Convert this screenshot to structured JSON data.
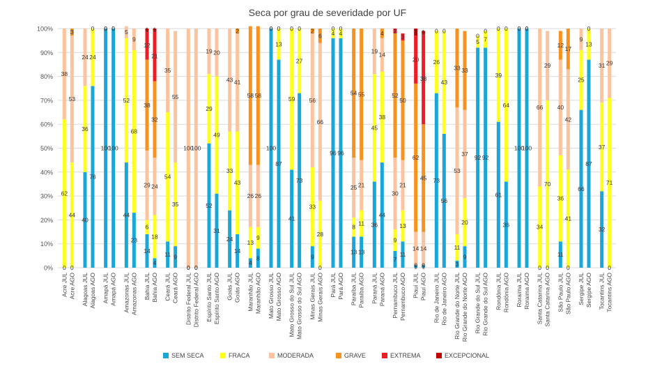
{
  "chart_data": {
    "type": "bar",
    "stacked": true,
    "percent": true,
    "title": "Seca por grau de severidade por UF",
    "xlabel": "",
    "ylabel": "",
    "ylim": [
      0,
      100
    ],
    "yticks": [
      "0%",
      "10%",
      "20%",
      "30%",
      "40%",
      "50%",
      "60%",
      "70%",
      "80%",
      "90%",
      "100%"
    ],
    "grid": true,
    "legend_position": "bottom",
    "categories": [
      "Acre JUL",
      "Acre AGO",
      "Alagoas JUL",
      "Alagoas AGO",
      "Amapá JUL",
      "Amapá AGO",
      "Amazonas JUL",
      "Amazonas AGO",
      "Bahia JUL",
      "Bahia AGO",
      "Ceará JUL",
      "Ceará AGO",
      "Distrito Federal JUL",
      "Distrito Federal AGO",
      "Espírito Santo JUL",
      "Espírito Santo AGO",
      "Goiás JUL",
      "Goiás AGO",
      "Maranhão JUL",
      "Maranhão AGO",
      "Mato Grosso JUL",
      "Mato Grosso AGO",
      "Mato Grosso do Sul JUL",
      "Mato Grosso do Sul AGO",
      "Minas Gerais JUL",
      "Minas Gerais AGO",
      "Pará JUL",
      "Pará AGO",
      "Paraíba JUL",
      "Paraíba AGO",
      "Paraná JUL",
      "Paraná AGO",
      "Pernambuco JUL",
      "Pernambuco AGO",
      "Piauí JUL",
      "Piauí AGO",
      "Rio de Janeiro JUL",
      "Rio de Janeiro AGO",
      "Rio Grande do Norte JUL",
      "Rio Grande do Norte AGO",
      "Rio Grande do Sul JUL",
      "Rio Grande do Sul AGO",
      "Rondônia JUL",
      "Rondônia AGO",
      "Roraima JUL",
      "Roraima AGO",
      "Santa Catarina JUL",
      "Santa Catarina AGO",
      "São Paulo JUL",
      "São Paulo AGO",
      "Sergipe JUL",
      "Sergipe AGO",
      "Tocantins JUL",
      "Tocantins AGO"
    ],
    "series": [
      {
        "name": "SEM SECA",
        "color": "#1aa7d8",
        "values": [
          0,
          0,
          40,
          76,
          100,
          100,
          44,
          23,
          14,
          4,
          11,
          9,
          0,
          0,
          52,
          31,
          24,
          14,
          4,
          8,
          100,
          87,
          41,
          73,
          9,
          0,
          96,
          96,
          13,
          13,
          36,
          44,
          7,
          11,
          1,
          1,
          73,
          56,
          3,
          9,
          92,
          92,
          61,
          36,
          100,
          100,
          0,
          0,
          11,
          0,
          66,
          87,
          32,
          0
        ]
      },
      {
        "name": "FRACA",
        "color": "#ffff1f",
        "values": [
          62,
          44,
          36,
          24,
          0,
          0,
          52,
          68,
          6,
          18,
          54,
          35,
          0,
          0,
          29,
          49,
          33,
          43,
          13,
          9,
          0,
          13,
          59,
          27,
          33,
          28,
          4,
          4,
          8,
          11,
          45,
          38,
          9,
          13,
          0,
          0,
          26,
          43,
          11,
          20,
          5,
          7,
          39,
          64,
          0,
          0,
          34,
          70,
          36,
          41,
          25,
          13,
          37,
          71
        ]
      },
      {
        "name": "MODERADA",
        "color": "#fbc49f",
        "values": [
          38,
          53,
          24,
          0,
          0,
          0,
          5,
          9,
          29,
          24,
          35,
          55,
          100,
          100,
          19,
          20,
          43,
          41,
          26,
          26,
          0,
          0,
          0,
          0,
          56,
          66,
          0,
          0,
          25,
          21,
          19,
          14,
          30,
          21,
          14,
          14,
          0,
          0,
          53,
          37,
          0,
          0,
          0,
          0,
          0,
          0,
          66,
          29,
          40,
          42,
          9,
          0,
          31,
          29
        ]
      },
      {
        "name": "GRAVE",
        "color": "#f6921e",
        "values": [
          0,
          3,
          0,
          0,
          0,
          0,
          0,
          0,
          38,
          32,
          0,
          0,
          0,
          0,
          0,
          0,
          0,
          2,
          58,
          58,
          0,
          0,
          0,
          0,
          2,
          6,
          0,
          0,
          54,
          55,
          0,
          4,
          52,
          50,
          62,
          45,
          0,
          0,
          33,
          33,
          0,
          0,
          0,
          0,
          0,
          0,
          0,
          0,
          12,
          17,
          0,
          0,
          0,
          0
        ]
      },
      {
        "name": "EXTREMA",
        "color": "#ee1c24",
        "values": [
          0,
          0,
          0,
          0,
          0,
          0,
          0,
          0,
          12,
          21,
          0,
          0,
          0,
          0,
          0,
          0,
          0,
          0,
          0,
          0,
          0,
          0,
          0,
          0,
          0,
          0,
          0,
          0,
          0,
          0,
          0,
          0,
          2,
          3,
          20,
          38,
          0,
          0,
          0,
          0,
          0,
          0,
          0,
          0,
          0,
          0,
          0,
          0,
          0,
          0,
          0,
          0,
          0,
          0
        ]
      },
      {
        "name": "EXCEPCIONAL",
        "color": "#c00000",
        "values": [
          0,
          0,
          0,
          0,
          0,
          0,
          0,
          0,
          1,
          1,
          0,
          0,
          0,
          0,
          0,
          0,
          0,
          0,
          0,
          0,
          0,
          0,
          0,
          0,
          0,
          0,
          0,
          0,
          0,
          0,
          0,
          0,
          0,
          0,
          3,
          1,
          0,
          0,
          0,
          0,
          0,
          0,
          0,
          0,
          0,
          0,
          0,
          0,
          0,
          0,
          0,
          0,
          0,
          0
        ]
      }
    ]
  }
}
